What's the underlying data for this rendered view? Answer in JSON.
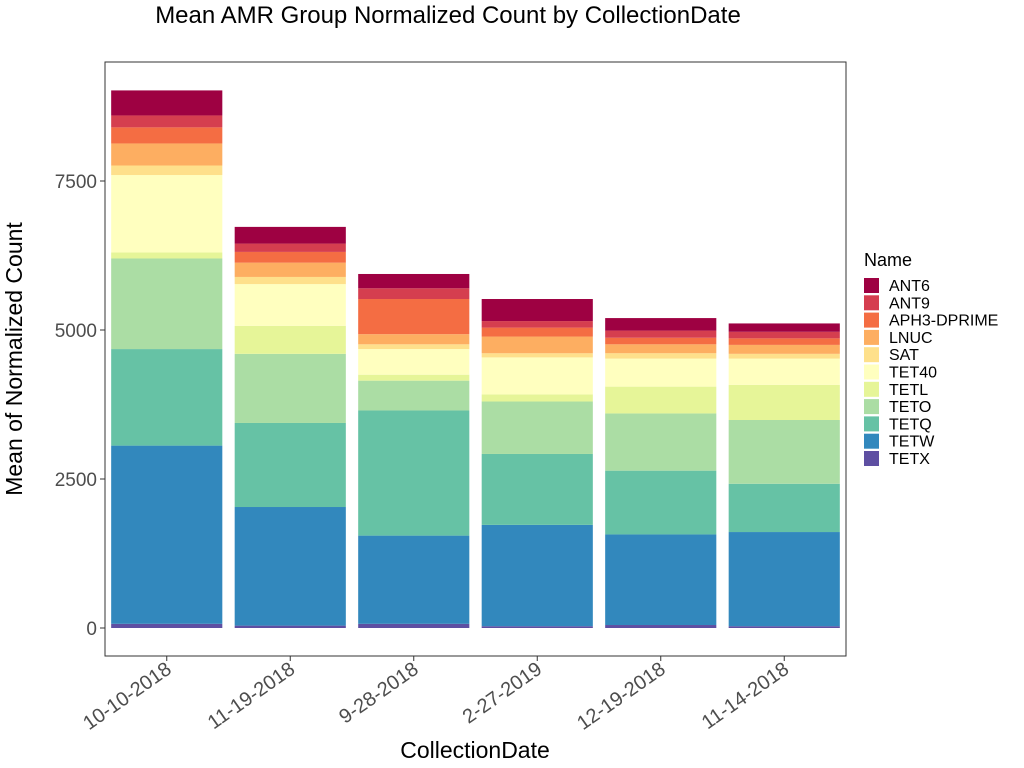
{
  "chart_data": {
    "type": "bar",
    "stacked": true,
    "title": "Mean AMR Group Normalized Count by CollectionDate",
    "xlabel": "CollectionDate",
    "ylabel": "Mean of Normalized Count",
    "ylim": [
      -400,
      9500
    ],
    "yticks": [
      0,
      2500,
      5000,
      7500
    ],
    "grid": false,
    "legend_position": "right",
    "legend_title": "Name",
    "categories": [
      "10-10-2018",
      "11-19-2018",
      "9-28-2018",
      "2-27-2019",
      "12-19-2018",
      "11-14-2018"
    ],
    "series": [
      {
        "name": "TETX",
        "color": "#5E4FA2",
        "values": [
          70,
          40,
          70,
          30,
          50,
          30
        ]
      },
      {
        "name": "TETW",
        "color": "#3288BD",
        "values": [
          2990,
          1990,
          1480,
          1700,
          1520,
          1580
        ]
      },
      {
        "name": "TETQ",
        "color": "#66C2A5",
        "values": [
          1620,
          1410,
          2100,
          1190,
          1070,
          810
        ]
      },
      {
        "name": "TETO",
        "color": "#ABDDA4",
        "values": [
          1520,
          1160,
          500,
          880,
          960,
          1070
        ]
      },
      {
        "name": "TETL",
        "color": "#E6F598",
        "values": [
          100,
          470,
          100,
          120,
          450,
          590
        ]
      },
      {
        "name": "TET40",
        "color": "#FFFFBF",
        "values": [
          1300,
          700,
          430,
          620,
          470,
          440
        ]
      },
      {
        "name": "SAT",
        "color": "#FEE08B",
        "values": [
          160,
          120,
          80,
          70,
          90,
          80
        ]
      },
      {
        "name": "LNUC",
        "color": "#FDAE61",
        "values": [
          370,
          240,
          170,
          280,
          150,
          150
        ]
      },
      {
        "name": "APH3-DPRIME",
        "color": "#F46D43",
        "values": [
          270,
          180,
          590,
          150,
          110,
          110
        ]
      },
      {
        "name": "ANT9",
        "color": "#D53E4F",
        "values": [
          200,
          140,
          180,
          110,
          120,
          110
        ]
      },
      {
        "name": "ANT6",
        "color": "#9E0142",
        "values": [
          420,
          280,
          240,
          370,
          210,
          140
        ]
      }
    ]
  }
}
